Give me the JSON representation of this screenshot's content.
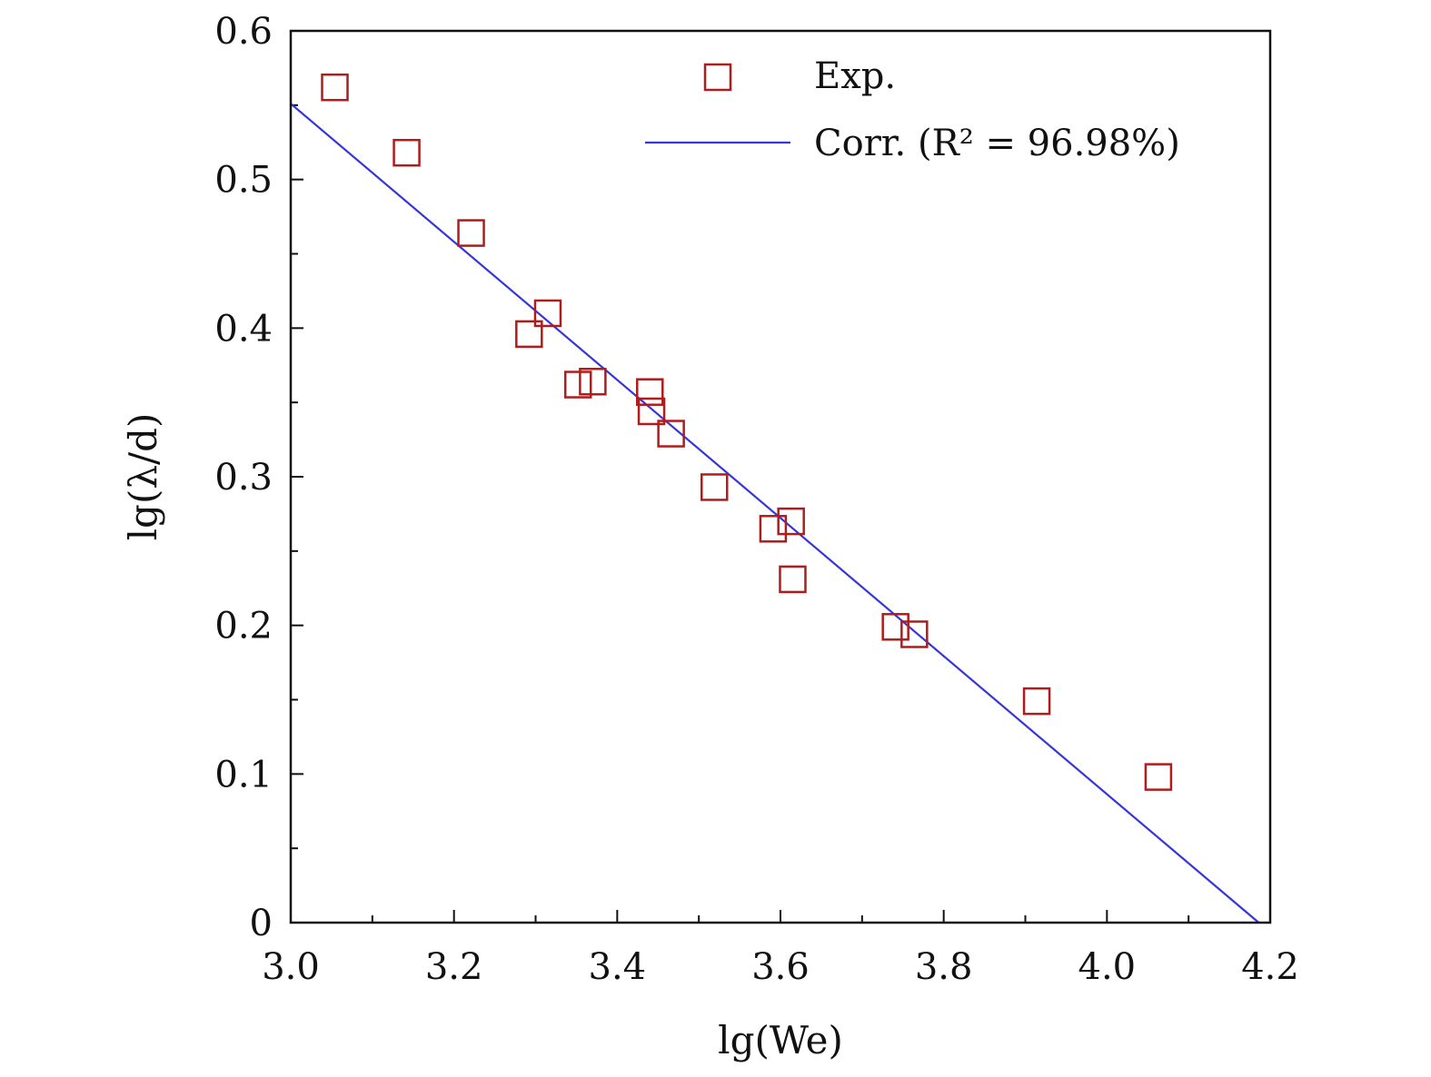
{
  "chart_data": {
    "type": "scatter",
    "xlabel": "lg(We)",
    "ylabel": "lg(λ/d)",
    "xlim": [
      3.0,
      4.2
    ],
    "ylim": [
      0,
      0.6
    ],
    "x_ticks": [
      "3.0",
      "3.2",
      "3.4",
      "3.6",
      "3.8",
      "4.0",
      "4.2"
    ],
    "y_ticks": [
      "0",
      "0.1",
      "0.2",
      "0.3",
      "0.4",
      "0.5",
      "0.6"
    ],
    "grid": false,
    "legend_position": "top-right",
    "series": [
      {
        "name": "Exp.",
        "kind": "scatter",
        "marker": "open-square",
        "color": "#b01c1c",
        "points": [
          [
            3.054,
            0.562
          ],
          [
            3.142,
            0.518
          ],
          [
            3.221,
            0.464
          ],
          [
            3.292,
            0.396
          ],
          [
            3.315,
            0.41
          ],
          [
            3.352,
            0.362
          ],
          [
            3.37,
            0.364
          ],
          [
            3.44,
            0.357
          ],
          [
            3.442,
            0.344
          ],
          [
            3.466,
            0.329
          ],
          [
            3.519,
            0.293
          ],
          [
            3.591,
            0.265
          ],
          [
            3.613,
            0.27
          ],
          [
            3.615,
            0.231
          ],
          [
            3.741,
            0.199
          ],
          [
            3.764,
            0.194
          ],
          [
            3.914,
            0.149
          ],
          [
            4.063,
            0.098
          ]
        ]
      },
      {
        "name": "Corr. (R² = 96.98%)",
        "kind": "line",
        "color": "#3535d9",
        "points": [
          [
            3.0,
            0.551
          ],
          [
            4.186,
            0.0
          ]
        ]
      }
    ]
  }
}
